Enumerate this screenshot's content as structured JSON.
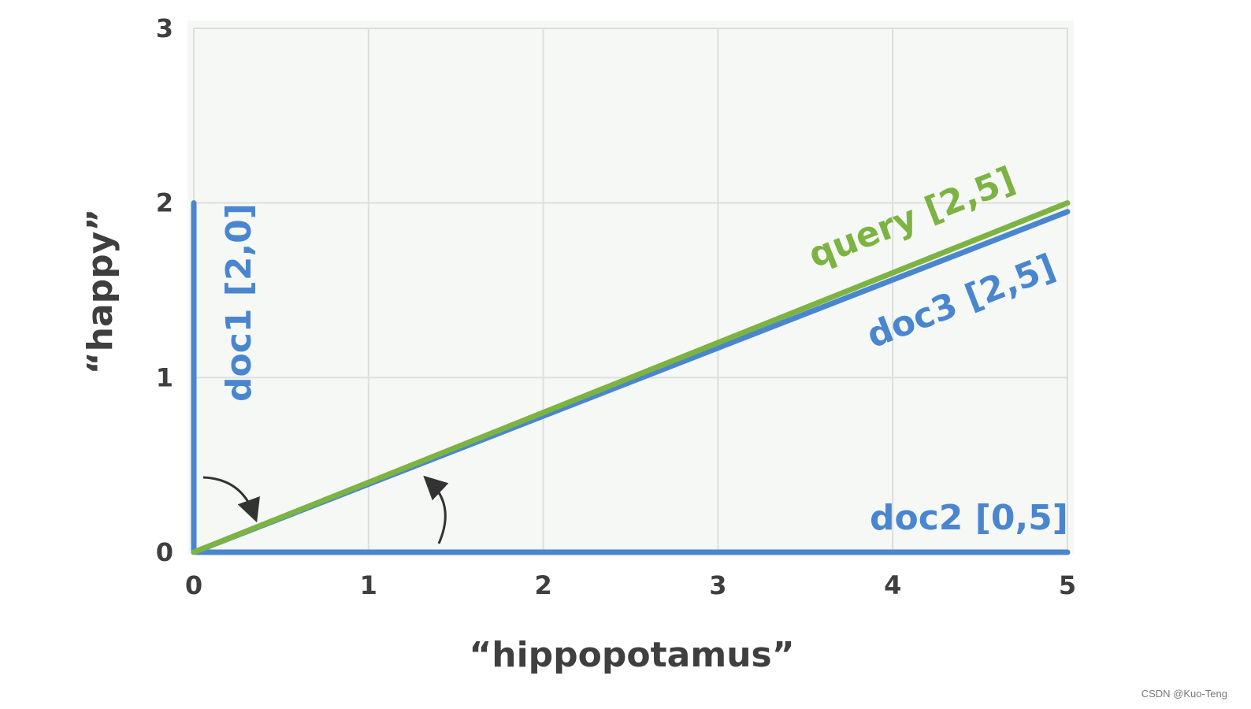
{
  "chart_data": {
    "type": "line",
    "xlabel": "“hippopotamus”",
    "ylabel": "“happy”",
    "xlim": [
      0,
      5
    ],
    "ylim": [
      0,
      3
    ],
    "x_ticks": [
      "0",
      "1",
      "2",
      "3",
      "4",
      "5"
    ],
    "y_ticks": [
      "0",
      "1",
      "2",
      "3"
    ],
    "grid": true,
    "colors": {
      "background": "#f6f8f5",
      "grid": "#dedede",
      "blue": "#4a86cf",
      "green": "#7cb342",
      "arrow": "#333333",
      "text": "#3f3f3f"
    },
    "series": [
      {
        "name": "doc1 [2,0]",
        "color": "#4a86cf",
        "points": [
          [
            0,
            0
          ],
          [
            0,
            2
          ]
        ]
      },
      {
        "name": "doc2 [0,5]",
        "color": "#4a86cf",
        "points": [
          [
            0,
            0
          ],
          [
            5,
            0
          ]
        ]
      },
      {
        "name": "doc3 [2,5]",
        "color": "#4a86cf",
        "points": [
          [
            0,
            0
          ],
          [
            5,
            1.95
          ]
        ]
      },
      {
        "name": "query [2,5]",
        "color": "#7cb342",
        "points": [
          [
            0,
            0
          ],
          [
            5,
            2
          ]
        ]
      }
    ]
  },
  "watermark": "CSDN @Kuo-Teng"
}
